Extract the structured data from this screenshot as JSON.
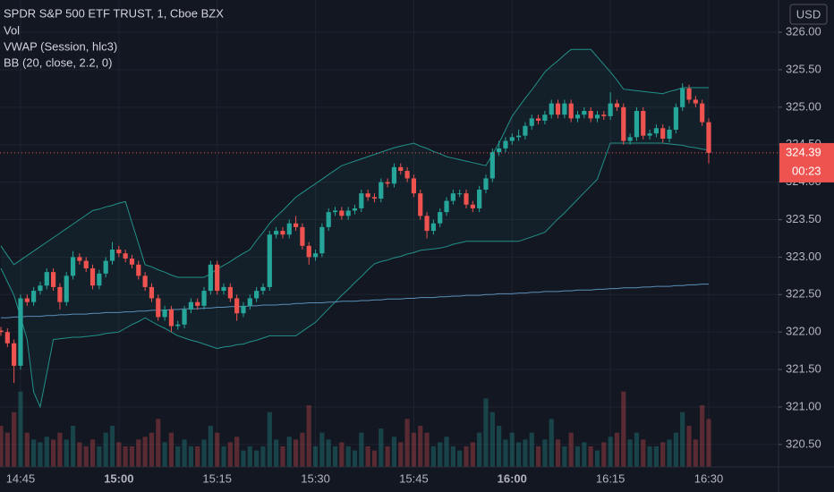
{
  "chart_data": {
    "type": "candlestick",
    "title": "SPDR S&P 500 ETF TRUST, 1, Cboe BZX",
    "currency": "USD",
    "countdown": "00:23",
    "categories": [
      null,
      null,
      null,
      "14:45",
      null,
      null,
      null,
      null,
      null,
      null,
      null,
      null,
      null,
      null,
      null,
      null,
      null,
      null,
      "15:00",
      null,
      null,
      null,
      null,
      null,
      null,
      null,
      null,
      null,
      null,
      null,
      null,
      null,
      null,
      "15:15",
      null,
      null,
      null,
      null,
      null,
      null,
      null,
      null,
      null,
      null,
      null,
      null,
      null,
      null,
      "15:30",
      null,
      null,
      null,
      null,
      null,
      null,
      null,
      null,
      null,
      null,
      null,
      null,
      null,
      null,
      "15:45",
      null,
      null,
      null,
      null,
      null,
      null,
      null,
      null,
      null,
      null,
      null,
      null,
      null,
      null,
      "16:00",
      null,
      null,
      null,
      null,
      null,
      null,
      null,
      null,
      null,
      null,
      null,
      null,
      null,
      null,
      "16:15",
      null,
      null,
      null,
      null,
      null,
      null,
      null,
      null,
      null,
      null,
      null,
      null,
      null,
      null,
      "16:30"
    ],
    "open": [
      322.02,
      322.0,
      321.85,
      321.55,
      322.45,
      322.4,
      322.55,
      322.62,
      322.8,
      322.6,
      322.4,
      322.75,
      323.0,
      322.95,
      322.85,
      322.62,
      322.78,
      322.95,
      323.1,
      323.05,
      322.98,
      322.9,
      322.75,
      322.6,
      322.45,
      322.2,
      322.3,
      322.08,
      322.1,
      322.3,
      322.4,
      322.35,
      322.55,
      322.9,
      322.55,
      322.6,
      322.45,
      322.25,
      322.35,
      322.45,
      322.55,
      322.6,
      323.3,
      323.35,
      323.3,
      323.45,
      323.4,
      323.15,
      323.0,
      323.05,
      323.4,
      323.6,
      323.62,
      323.55,
      323.62,
      323.65,
      323.85,
      323.8,
      323.78,
      324.0,
      323.98,
      324.2,
      324.15,
      324.05,
      323.85,
      323.55,
      323.35,
      323.45,
      323.6,
      323.75,
      323.85,
      323.85,
      323.7,
      323.65,
      323.9,
      324.05,
      324.4,
      324.45,
      324.55,
      324.6,
      324.62,
      324.75,
      324.85,
      324.82,
      324.9,
      325.05,
      324.9,
      325.05,
      324.85,
      324.9,
      324.95,
      324.85,
      324.9,
      324.88,
      325.05,
      325.0,
      324.55,
      324.6,
      324.95,
      324.62,
      324.65,
      324.72,
      324.58,
      324.7,
      325.0,
      325.25,
      325.1,
      325.05,
      324.8
    ],
    "high": [
      322.07,
      322.05,
      321.9,
      322.5,
      322.5,
      322.6,
      322.67,
      322.85,
      322.85,
      322.65,
      322.8,
      323.08,
      323.05,
      323.0,
      322.9,
      322.83,
      323.0,
      323.2,
      323.15,
      323.1,
      323.03,
      322.95,
      322.8,
      322.65,
      322.5,
      322.35,
      322.35,
      322.15,
      322.35,
      322.45,
      322.45,
      322.6,
      322.95,
      322.95,
      322.65,
      322.65,
      322.5,
      322.4,
      322.5,
      322.6,
      322.65,
      323.35,
      323.4,
      323.4,
      323.5,
      323.55,
      323.45,
      323.2,
      323.1,
      323.45,
      323.65,
      323.67,
      323.67,
      323.67,
      323.7,
      323.9,
      323.9,
      323.85,
      324.05,
      324.05,
      324.25,
      324.25,
      324.2,
      324.1,
      323.9,
      323.6,
      323.5,
      323.65,
      323.8,
      323.9,
      323.9,
      323.9,
      323.75,
      323.95,
      324.1,
      324.45,
      324.55,
      324.6,
      324.65,
      324.7,
      324.8,
      324.9,
      324.9,
      324.95,
      325.1,
      325.1,
      325.1,
      325.1,
      324.95,
      325.0,
      325.0,
      324.95,
      324.95,
      325.2,
      325.1,
      325.05,
      324.65,
      325.0,
      325.0,
      324.7,
      324.77,
      324.77,
      324.75,
      325.05,
      325.32,
      325.3,
      325.15,
      325.1,
      324.85
    ],
    "low": [
      321.95,
      321.8,
      321.32,
      321.5,
      322.35,
      322.35,
      322.5,
      322.57,
      322.55,
      322.3,
      322.35,
      322.7,
      322.9,
      322.8,
      322.57,
      322.57,
      322.73,
      322.9,
      323.0,
      322.93,
      322.85,
      322.7,
      322.55,
      322.4,
      322.15,
      322.15,
      322.0,
      322.03,
      322.05,
      322.25,
      322.3,
      322.3,
      322.5,
      322.5,
      322.5,
      322.4,
      322.15,
      322.2,
      322.3,
      322.4,
      322.5,
      322.55,
      323.25,
      323.25,
      323.25,
      323.35,
      323.1,
      322.9,
      322.95,
      323.0,
      323.35,
      323.55,
      323.5,
      323.5,
      323.57,
      323.6,
      323.75,
      323.73,
      323.73,
      323.93,
      323.93,
      324.1,
      324.0,
      323.8,
      323.5,
      323.25,
      323.3,
      323.4,
      323.55,
      323.7,
      323.8,
      323.65,
      323.6,
      323.6,
      323.85,
      324.0,
      324.35,
      324.4,
      324.5,
      324.55,
      324.57,
      324.7,
      324.77,
      324.77,
      324.85,
      324.85,
      324.85,
      324.8,
      324.8,
      324.85,
      324.8,
      324.8,
      324.83,
      324.83,
      324.95,
      324.5,
      324.5,
      324.55,
      324.57,
      324.57,
      324.6,
      324.53,
      324.53,
      324.65,
      324.95,
      325.05,
      325.0,
      324.75,
      324.25
    ],
    "close": [
      322.0,
      321.85,
      321.55,
      322.45,
      322.4,
      322.55,
      322.62,
      322.8,
      322.6,
      322.4,
      322.75,
      323.0,
      322.95,
      322.85,
      322.62,
      322.78,
      322.95,
      323.1,
      323.05,
      322.98,
      322.9,
      322.75,
      322.6,
      322.45,
      322.2,
      322.3,
      322.08,
      322.1,
      322.3,
      322.4,
      322.35,
      322.55,
      322.9,
      322.55,
      322.6,
      322.45,
      322.25,
      322.35,
      322.45,
      322.55,
      322.6,
      323.3,
      323.35,
      323.3,
      323.45,
      323.4,
      323.15,
      323.0,
      323.05,
      323.4,
      323.6,
      323.62,
      323.55,
      323.62,
      323.65,
      323.85,
      323.8,
      323.78,
      324.0,
      323.98,
      324.2,
      324.15,
      324.05,
      323.85,
      323.55,
      323.35,
      323.45,
      323.6,
      323.75,
      323.85,
      323.85,
      323.7,
      323.65,
      323.9,
      324.05,
      324.4,
      324.45,
      324.55,
      324.6,
      324.62,
      324.75,
      324.85,
      324.82,
      324.9,
      325.05,
      324.9,
      325.05,
      324.85,
      324.9,
      324.95,
      324.85,
      324.9,
      324.88,
      325.05,
      325.0,
      324.55,
      324.6,
      324.95,
      324.62,
      324.65,
      324.72,
      324.58,
      324.7,
      325.0,
      325.25,
      325.1,
      325.05,
      324.8,
      324.39
    ],
    "up_color": "#26a69a",
    "down_color": "#ef5350",
    "ylim": [
      320.2,
      326.43
    ],
    "yticks": [
      {
        "value": 320.5,
        "label": "320.50"
      },
      {
        "value": 321,
        "label": "321.00"
      },
      {
        "value": 321.5,
        "label": "321.50"
      },
      {
        "value": 322,
        "label": "322.00"
      },
      {
        "value": 322.5,
        "label": "322.50"
      },
      {
        "value": 323,
        "label": "323.00"
      },
      {
        "value": 323.5,
        "label": "323.50"
      },
      {
        "value": 324,
        "label": "324.00"
      },
      {
        "value": 324.5,
        "label": "324.50"
      },
      {
        "value": 325,
        "label": "325.00"
      },
      {
        "value": 325.5,
        "label": "325.50"
      },
      {
        "value": 326,
        "label": "326.00"
      }
    ],
    "grid": true,
    "volume": {
      "name": "Vol",
      "ylim": [
        0,
        60
      ],
      "values": [
        30,
        25,
        40,
        55,
        25,
        20,
        18,
        22,
        20,
        25,
        20,
        30,
        18,
        15,
        20,
        15,
        25,
        30,
        18,
        15,
        15,
        20,
        22,
        25,
        35,
        18,
        25,
        15,
        20,
        15,
        15,
        20,
        30,
        25,
        15,
        18,
        22,
        12,
        15,
        12,
        15,
        40,
        20,
        15,
        22,
        20,
        25,
        45,
        15,
        25,
        20,
        15,
        18,
        15,
        12,
        25,
        15,
        12,
        28,
        15,
        22,
        18,
        35,
        25,
        30,
        25,
        15,
        18,
        22,
        15,
        12,
        15,
        18,
        25,
        50,
        40,
        30,
        20,
        25,
        18,
        20,
        25,
        15,
        20,
        35,
        20,
        15,
        25,
        15,
        18,
        15,
        12,
        18,
        22,
        25,
        55,
        20,
        25,
        20,
        15,
        15,
        18,
        20,
        25,
        40,
        30,
        20,
        45,
        35
      ]
    },
    "vwap": {
      "name": "VWAP (Session, hlc3)",
      "color": "#5b8fb9",
      "values": [
        322.19,
        322.19,
        322.2,
        322.2,
        322.21,
        322.21,
        322.21,
        322.22,
        322.22,
        322.23,
        322.23,
        322.24,
        322.24,
        322.24,
        322.25,
        322.25,
        322.26,
        322.26,
        322.26,
        322.27,
        322.27,
        322.28,
        322.28,
        322.29,
        322.29,
        322.29,
        322.3,
        322.3,
        322.31,
        322.31,
        322.31,
        322.32,
        322.32,
        322.33,
        322.33,
        322.34,
        322.34,
        322.34,
        322.35,
        322.35,
        322.36,
        322.36,
        322.36,
        322.37,
        322.37,
        322.38,
        322.38,
        322.39,
        322.39,
        322.39,
        322.4,
        322.4,
        322.41,
        322.41,
        322.41,
        322.42,
        322.42,
        322.43,
        322.43,
        322.44,
        322.44,
        322.44,
        322.45,
        322.45,
        322.46,
        322.46,
        322.46,
        322.47,
        322.47,
        322.48,
        322.48,
        322.49,
        322.49,
        322.49,
        322.5,
        322.5,
        322.51,
        322.51,
        322.51,
        322.52,
        322.52,
        322.53,
        322.53,
        322.54,
        322.54,
        322.54,
        322.55,
        322.55,
        322.56,
        322.56,
        322.56,
        322.57,
        322.57,
        322.58,
        322.58,
        322.59,
        322.59,
        322.59,
        322.6,
        322.6,
        322.61,
        322.61,
        322.61,
        322.62,
        322.62,
        322.63,
        322.63,
        322.64,
        322.64
      ]
    },
    "bollinger": {
      "name": "BB (20, close, 2.2, 0)",
      "color": "#26a69a",
      "upper": [
        323.15,
        323.02,
        322.9,
        322.96,
        323.02,
        323.08,
        323.14,
        323.2,
        323.26,
        323.32,
        323.38,
        323.44,
        323.5,
        323.56,
        323.62,
        323.64,
        323.67,
        323.69,
        323.72,
        323.74,
        323.46,
        323.18,
        322.9,
        322.87,
        322.83,
        322.8,
        322.76,
        322.73,
        322.73,
        322.73,
        322.73,
        322.73,
        322.78,
        322.84,
        322.89,
        322.94,
        323.0,
        323.05,
        323.1,
        323.22,
        323.33,
        323.45,
        323.54,
        323.62,
        323.71,
        323.8,
        323.86,
        323.92,
        323.98,
        324.04,
        324.1,
        324.16,
        324.22,
        324.25,
        324.28,
        324.31,
        324.34,
        324.37,
        324.4,
        324.43,
        324.46,
        324.48,
        324.5,
        324.52,
        324.48,
        324.45,
        324.41,
        324.38,
        324.34,
        324.32,
        324.3,
        324.28,
        324.26,
        324.24,
        324.22,
        324.37,
        324.52,
        324.7,
        324.88,
        325.0,
        325.12,
        325.23,
        325.35,
        325.47,
        325.55,
        325.62,
        325.7,
        325.77,
        325.77,
        325.77,
        325.77,
        325.67,
        325.57,
        325.47,
        325.36,
        325.24,
        325.23,
        325.22,
        325.21,
        325.2,
        325.19,
        325.18,
        325.21,
        325.23,
        325.26,
        325.26,
        325.26,
        325.26,
        325.26
      ],
      "lower": [
        322.85,
        322.67,
        322.49,
        322.2,
        321.9,
        321.2,
        321.0,
        321.45,
        321.9,
        321.91,
        321.92,
        321.93,
        321.93,
        321.94,
        321.95,
        321.96,
        321.98,
        321.99,
        322.0,
        322.05,
        322.1,
        322.14,
        322.19,
        322.14,
        322.09,
        322.05,
        322.0,
        321.95,
        321.92,
        321.89,
        321.87,
        321.84,
        321.81,
        321.78,
        321.8,
        321.81,
        321.83,
        321.84,
        321.87,
        321.89,
        321.92,
        321.95,
        321.95,
        321.95,
        321.95,
        321.95,
        322.01,
        322.07,
        322.13,
        322.22,
        322.31,
        322.4,
        322.49,
        322.57,
        322.66,
        322.74,
        322.83,
        322.91,
        322.94,
        322.96,
        322.99,
        323.01,
        323.04,
        323.06,
        323.09,
        323.1,
        323.11,
        323.12,
        323.14,
        323.17,
        323.19,
        323.21,
        323.21,
        323.21,
        323.21,
        323.21,
        323.21,
        323.21,
        323.21,
        323.21,
        323.24,
        323.27,
        323.3,
        323.33,
        323.42,
        323.51,
        323.59,
        323.68,
        323.77,
        323.86,
        323.95,
        324.04,
        324.28,
        324.52,
        324.52,
        324.52,
        324.52,
        324.52,
        324.52,
        324.52,
        324.52,
        324.52,
        324.51,
        324.5,
        324.49,
        324.47,
        324.46,
        324.44,
        324.43
      ]
    }
  }
}
